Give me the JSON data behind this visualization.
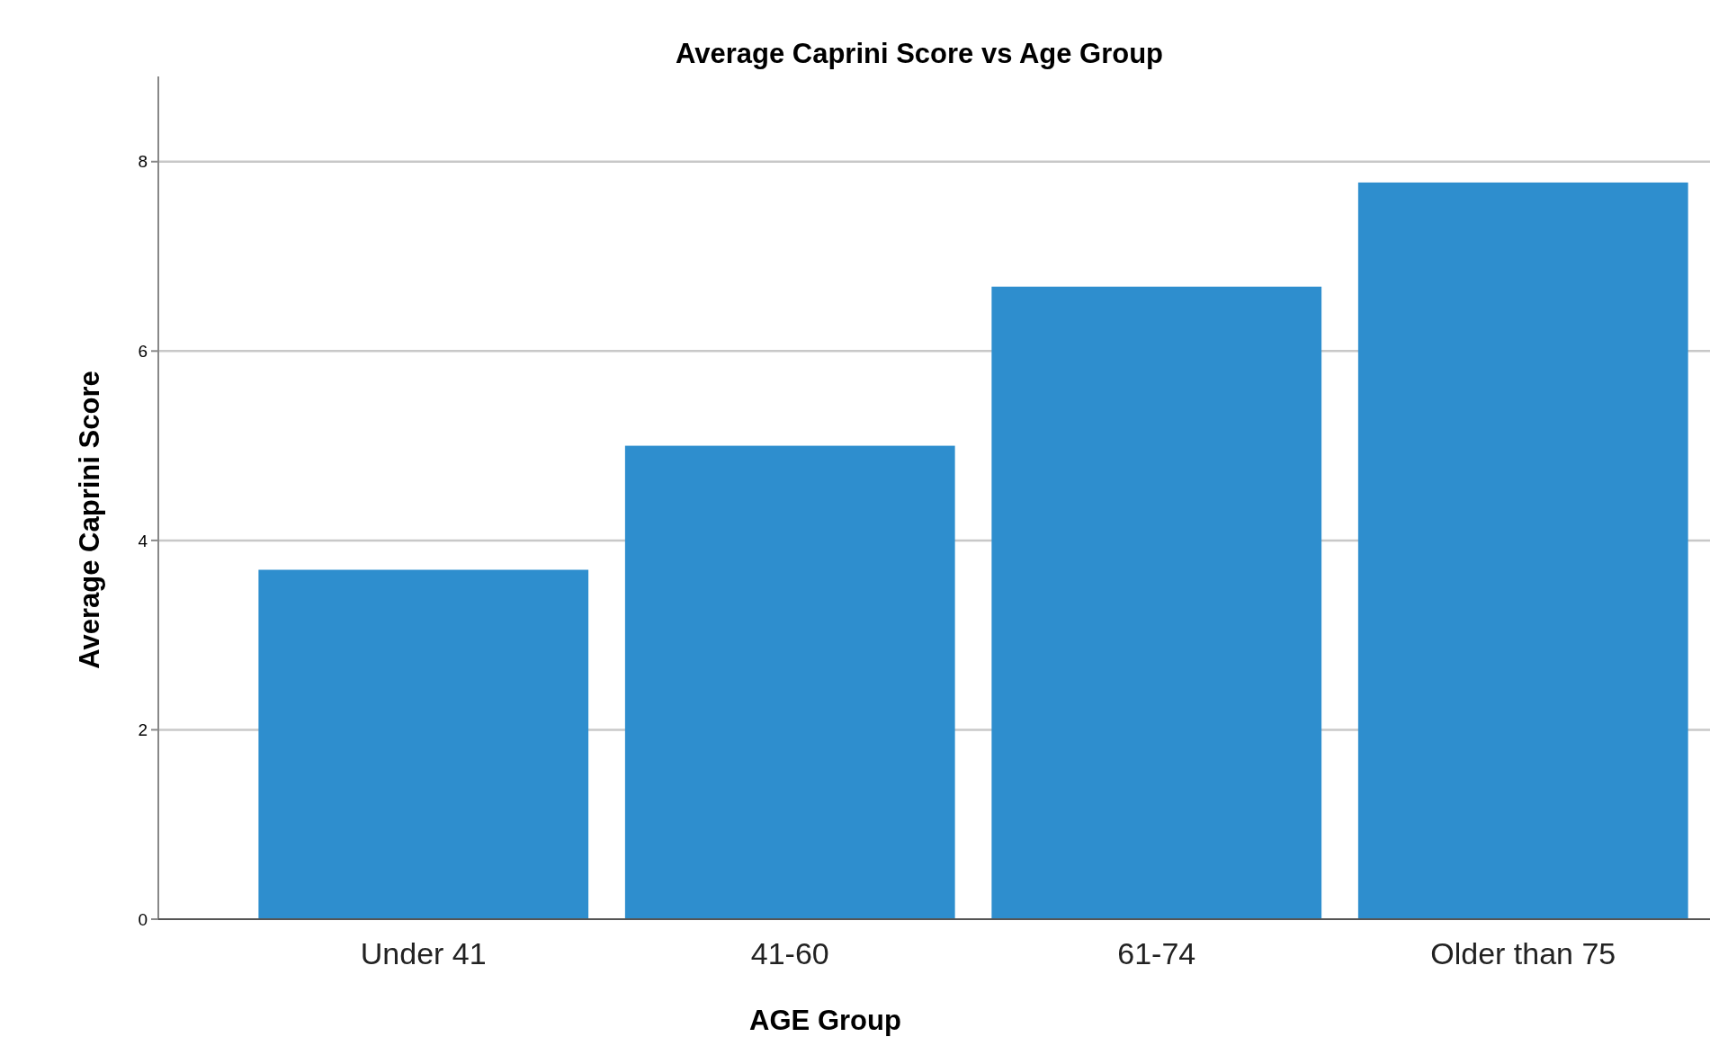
{
  "chart_data": {
    "type": "bar",
    "title": "Average Caprini Score vs Age Group",
    "xlabel": "AGE Group",
    "ylabel": "Average Caprini Score",
    "categories": [
      "Under 41",
      "41-60",
      "61-74",
      "Older than 75"
    ],
    "values": [
      3.69,
      5.0,
      6.68,
      7.78
    ],
    "color": "#2e8ece",
    "ylim": [
      0,
      8.9
    ],
    "yticks": [
      0,
      2,
      4,
      6,
      8
    ],
    "grid": "y"
  }
}
